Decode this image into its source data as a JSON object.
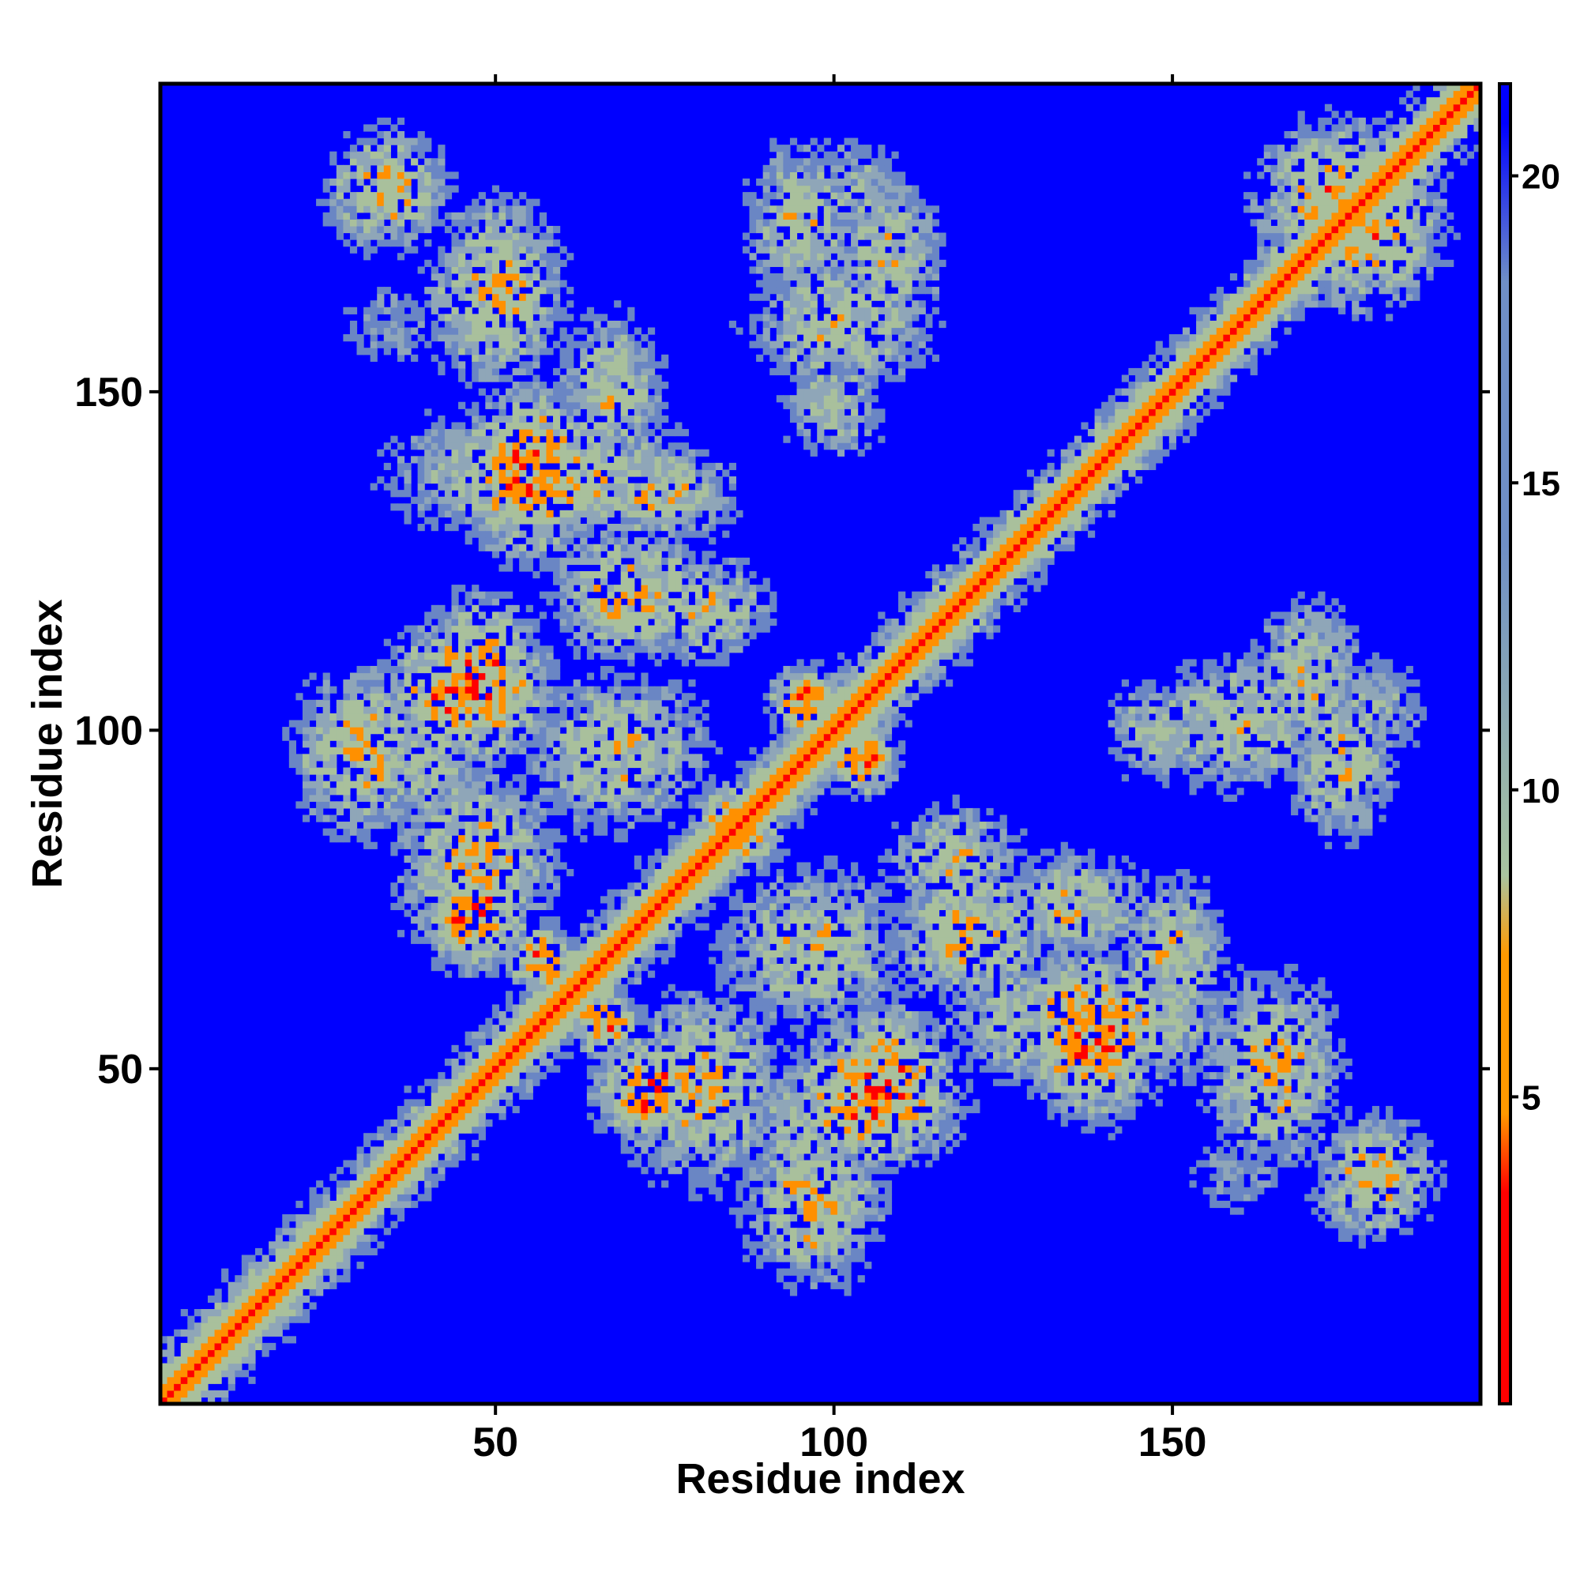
{
  "chart_data": {
    "type": "heatmap",
    "title": "",
    "xlabel": "Residue index",
    "ylabel": "Residue index",
    "xlim": [
      1,
      195
    ],
    "ylim": [
      1,
      195
    ],
    "x_ticks": [
      50,
      100,
      150
    ],
    "y_ticks": [
      50,
      100,
      150
    ],
    "colorbar": {
      "ticks": [
        5,
        10,
        15,
        20
      ],
      "range": [
        0,
        21.5
      ],
      "colors": [
        "#ff0000",
        "#ff9900",
        "#a9c4a0",
        "#6f8fc6",
        "#0000ff"
      ]
    },
    "pattern": {
      "diagonal_band": {
        "ranges": [
          [
            1,
            195
          ]
        ],
        "half_width": 5
      },
      "symmetric_blobs": [
        {
          "i": 34,
          "j": 180,
          "w": 9,
          "h": 9,
          "d": 8
        },
        {
          "i": 50,
          "j": 165,
          "w": 10,
          "h": 14,
          "d": 8
        },
        {
          "i": 55,
          "j": 138,
          "w": 10,
          "h": 12,
          "d": 6
        },
        {
          "i": 67,
          "j": 150,
          "w": 8,
          "h": 12,
          "d": 9
        },
        {
          "i": 70,
          "j": 120,
          "w": 12,
          "h": 10,
          "d": 8
        },
        {
          "i": 95,
          "j": 175,
          "w": 8,
          "h": 12,
          "d": 9
        },
        {
          "i": 108,
          "j": 170,
          "w": 8,
          "h": 12,
          "d": 9
        },
        {
          "i": 100,
          "j": 148,
          "w": 8,
          "h": 8,
          "d": 10
        },
        {
          "i": 30,
          "j": 97,
          "w": 10,
          "h": 12,
          "d": 8
        },
        {
          "i": 46,
          "j": 106,
          "w": 12,
          "h": 10,
          "d": 6
        },
        {
          "i": 47,
          "j": 73,
          "w": 8,
          "h": 8,
          "d": 6
        },
        {
          "i": 57,
          "j": 66,
          "w": 5,
          "h": 5,
          "d": 6
        },
        {
          "i": 68,
          "j": 97,
          "w": 14,
          "h": 12,
          "d": 9
        },
        {
          "i": 85,
          "j": 86,
          "w": 6,
          "h": 6,
          "d": 6
        },
        {
          "i": 96,
          "j": 104,
          "w": 5,
          "h": 5,
          "d": 5
        },
        {
          "i": 80,
          "j": 47,
          "w": 12,
          "h": 14,
          "d": 8
        },
        {
          "i": 108,
          "j": 48,
          "w": 9,
          "h": 12,
          "d": 7
        },
        {
          "i": 96,
          "j": 40,
          "w": 10,
          "h": 12,
          "d": 10
        },
        {
          "i": 138,
          "j": 57,
          "w": 22,
          "h": 10,
          "d": 8
        },
        {
          "i": 135,
          "j": 74,
          "w": 12,
          "h": 8,
          "d": 9
        },
        {
          "i": 118,
          "j": 81,
          "w": 10,
          "h": 8,
          "d": 9
        },
        {
          "i": 160,
          "j": 101,
          "w": 14,
          "h": 10,
          "d": 9
        },
        {
          "i": 180,
          "j": 103,
          "w": 8,
          "h": 8,
          "d": 11
        },
        {
          "i": 180,
          "j": 35,
          "w": 7,
          "h": 9,
          "d": 10
        },
        {
          "i": 160,
          "j": 35,
          "w": 10,
          "h": 8,
          "d": 14
        },
        {
          "i": 175,
          "j": 178,
          "w": 12,
          "h": 12,
          "d": 7
        }
      ]
    }
  }
}
